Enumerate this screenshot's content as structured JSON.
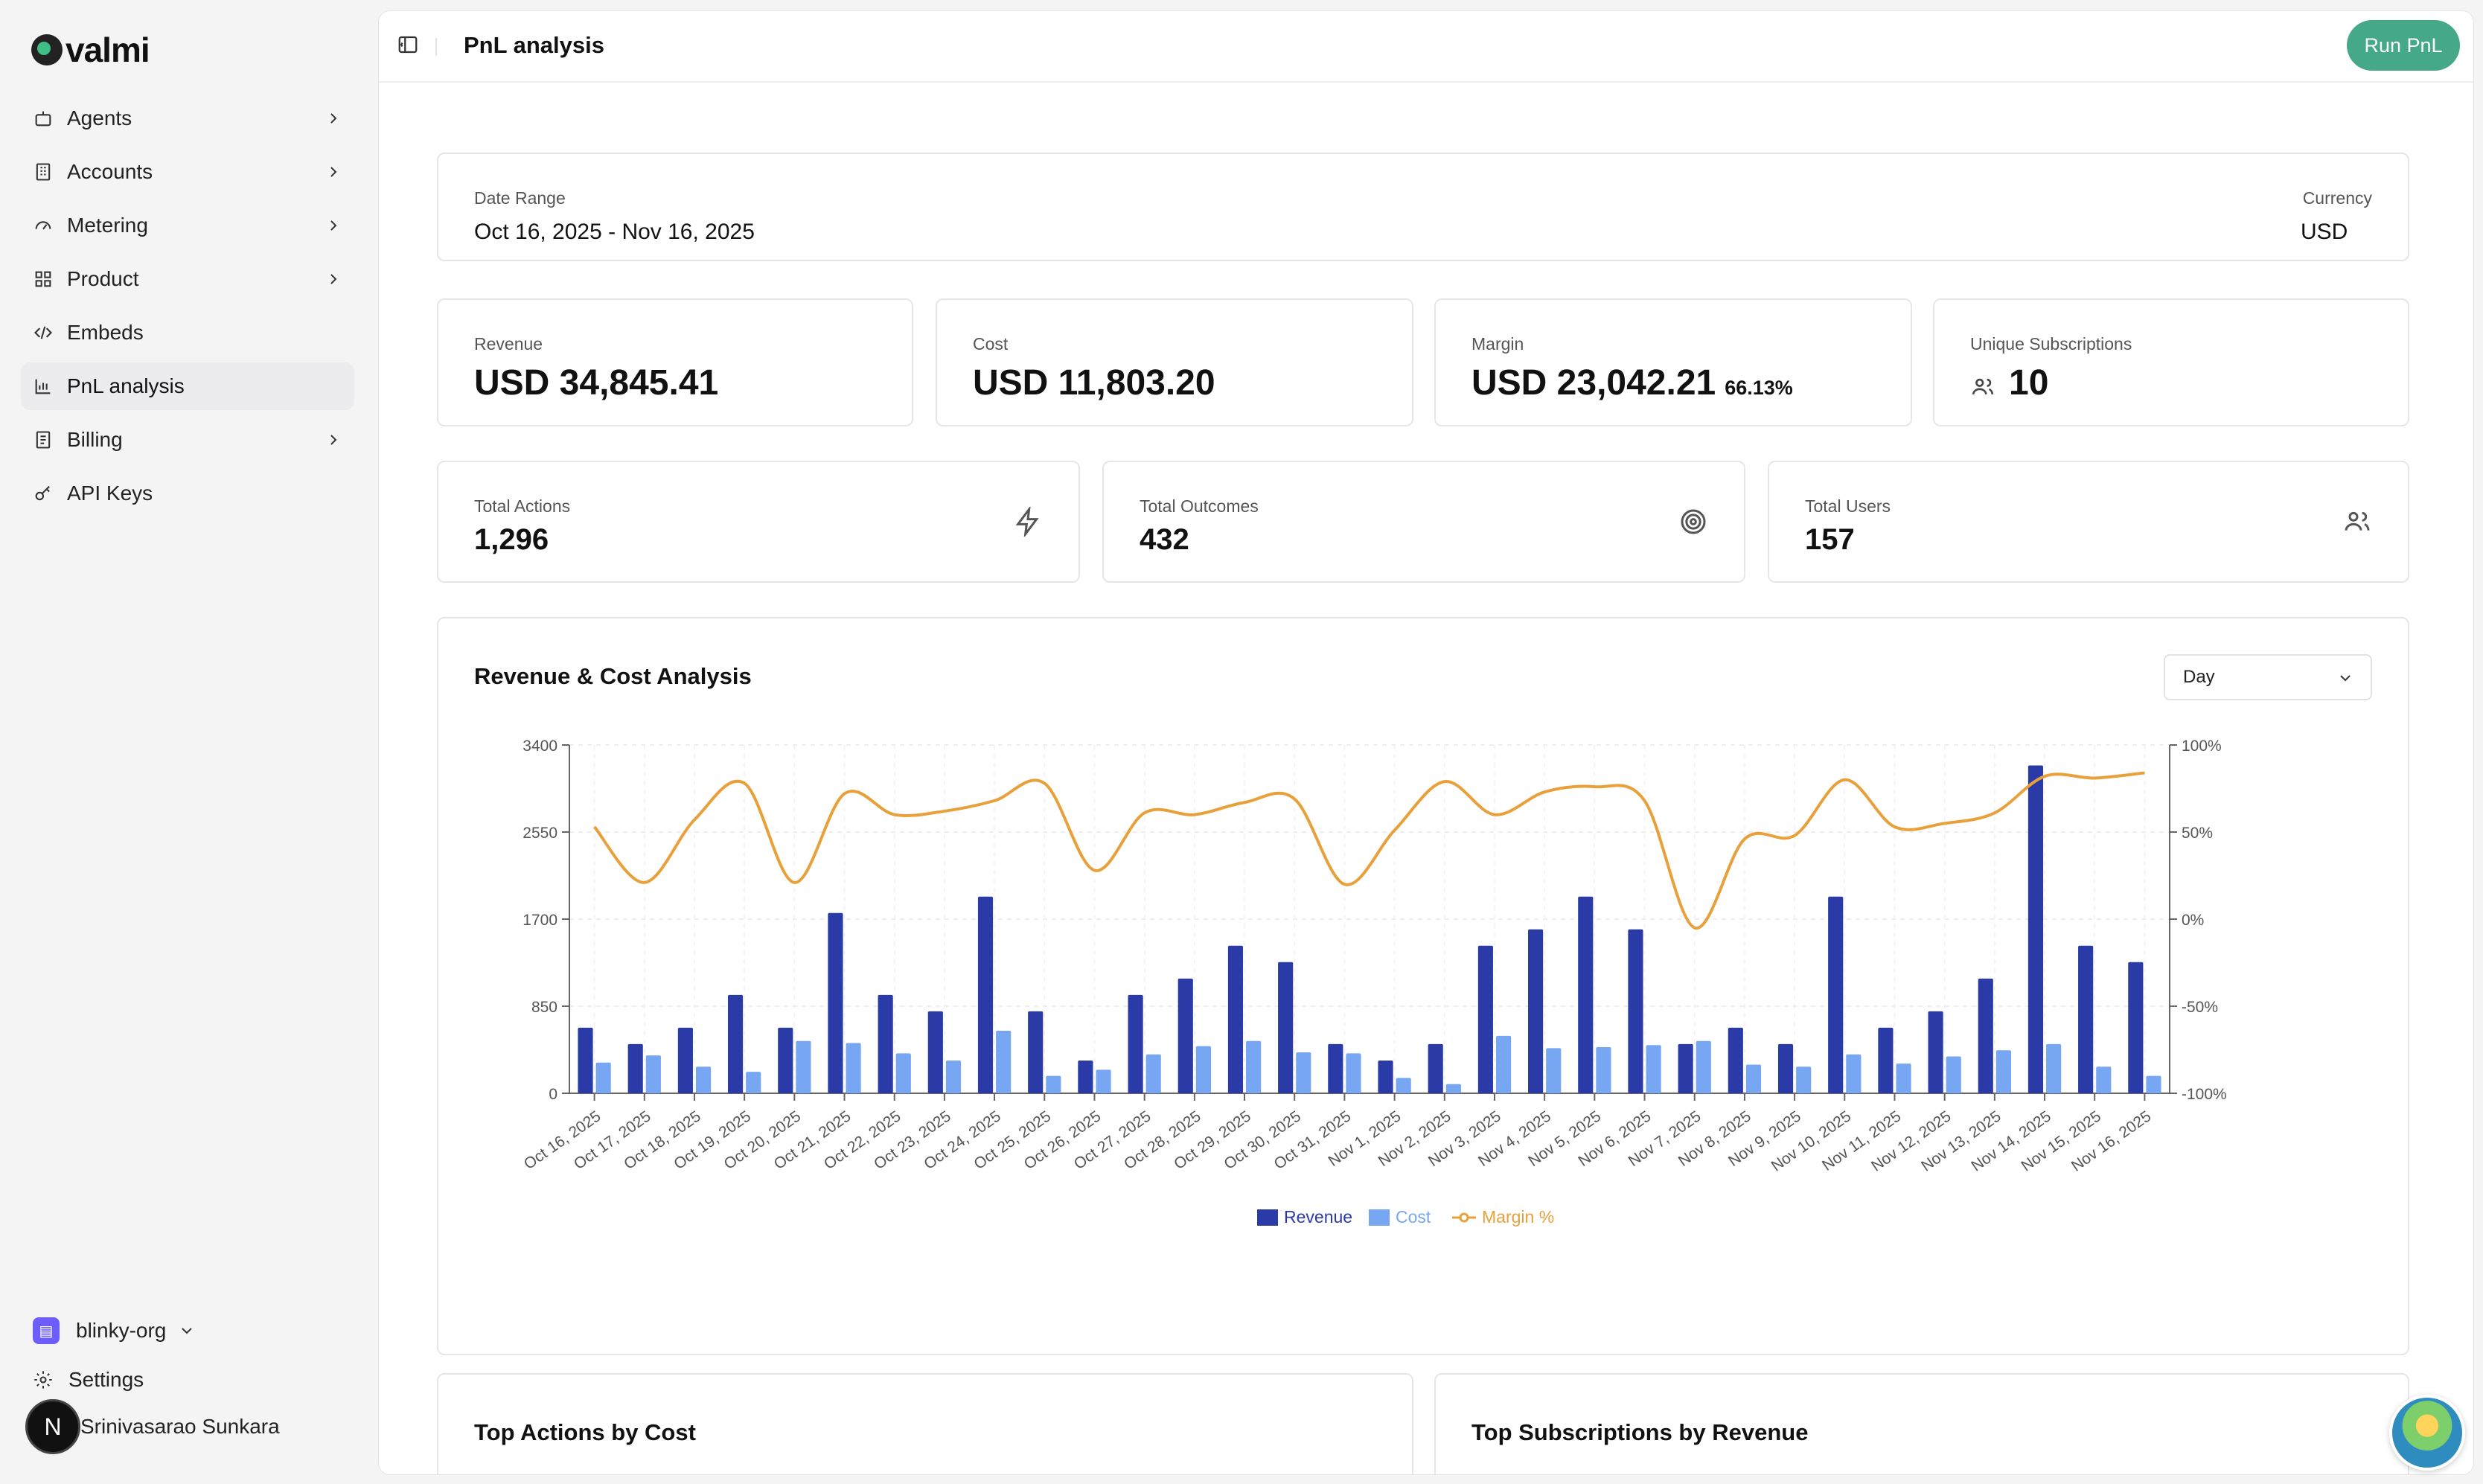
{
  "app": {
    "logo_text": "valmi"
  },
  "sidebar": {
    "items": [
      {
        "label": "Agents",
        "icon": "bot-icon",
        "has_chevron": true
      },
      {
        "label": "Accounts",
        "icon": "building-icon",
        "has_chevron": true
      },
      {
        "label": "Metering",
        "icon": "gauge-icon",
        "has_chevron": true
      },
      {
        "label": "Product",
        "icon": "grid-icon",
        "has_chevron": true
      },
      {
        "label": "Embeds",
        "icon": "code-icon",
        "has_chevron": false
      },
      {
        "label": "PnL analysis",
        "icon": "bar-chart-icon",
        "has_chevron": false,
        "active": true
      },
      {
        "label": "Billing",
        "icon": "receipt-icon",
        "has_chevron": true
      },
      {
        "label": "API Keys",
        "icon": "key-icon",
        "has_chevron": false
      }
    ],
    "org": {
      "name": "blinky-org",
      "badge_icon": "building-icon"
    },
    "settings_label": "Settings",
    "user": {
      "initial": "N",
      "name": "Srinivasarao Sunkara"
    }
  },
  "header": {
    "title": "PnL analysis",
    "run_button": "Run PnL"
  },
  "filters": {
    "date_range_label": "Date Range",
    "date_range_value": "Oct 16, 2025 - Nov 16, 2025",
    "currency_label": "Currency",
    "currency_value": "USD"
  },
  "kpis": {
    "revenue": {
      "label": "Revenue",
      "value": "USD 34,845.41"
    },
    "cost": {
      "label": "Cost",
      "value": "USD 11,803.20"
    },
    "margin": {
      "label": "Margin",
      "value": "USD 23,042.21",
      "percent": "66.13%"
    },
    "subscriptions": {
      "label": "Unique Subscriptions",
      "value": "10"
    }
  },
  "totals": {
    "actions": {
      "label": "Total Actions",
      "value": "1,296"
    },
    "outcomes": {
      "label": "Total Outcomes",
      "value": "432"
    },
    "users": {
      "label": "Total Users",
      "value": "157"
    }
  },
  "chart_section": {
    "title": "Revenue & Cost Analysis",
    "granularity": "Day"
  },
  "colors": {
    "revenue": "#2a3ba8",
    "cost": "#77a6f2",
    "margin": "#e8a13a",
    "accent": "#44a889"
  },
  "chart_data": {
    "type": "bar",
    "categories": [
      "Oct 16, 2025",
      "Oct 17, 2025",
      "Oct 18, 2025",
      "Oct 19, 2025",
      "Oct 20, 2025",
      "Oct 21, 2025",
      "Oct 22, 2025",
      "Oct 23, 2025",
      "Oct 24, 2025",
      "Oct 25, 2025",
      "Oct 26, 2025",
      "Oct 27, 2025",
      "Oct 28, 2025",
      "Oct 29, 2025",
      "Oct 30, 2025",
      "Oct 31, 2025",
      "Nov 1, 2025",
      "Nov 2, 2025",
      "Nov 3, 2025",
      "Nov 4, 2025",
      "Nov 5, 2025",
      "Nov 6, 2025",
      "Nov 7, 2025",
      "Nov 8, 2025",
      "Nov 9, 2025",
      "Nov 10, 2025",
      "Nov 11, 2025",
      "Nov 12, 2025",
      "Nov 13, 2025",
      "Nov 14, 2025",
      "Nov 15, 2025",
      "Nov 16, 2025"
    ],
    "series": [
      {
        "name": "Revenue",
        "type": "bar",
        "axis": "left",
        "values": [
          640,
          480,
          640,
          960,
          640,
          1760,
          960,
          800,
          1920,
          800,
          320,
          960,
          1120,
          1440,
          1280,
          480,
          320,
          480,
          1440,
          1600,
          1920,
          1600,
          480,
          640,
          480,
          1920,
          640,
          800,
          1120,
          3200,
          1440,
          1280
        ]
      },
      {
        "name": "Cost",
        "type": "bar",
        "axis": "left",
        "values": [
          300,
          370,
          260,
          210,
          510,
          490,
          390,
          320,
          610,
          170,
          230,
          380,
          460,
          510,
          400,
          390,
          150,
          90,
          560,
          440,
          450,
          470,
          510,
          280,
          260,
          380,
          290,
          360,
          420,
          480,
          260,
          170
        ]
      },
      {
        "name": "Margin %",
        "type": "line",
        "axis": "right",
        "values": [
          53,
          21,
          57,
          78,
          21,
          72,
          60,
          62,
          68,
          78,
          28,
          61,
          60,
          67,
          69,
          20,
          51,
          79,
          60,
          73,
          76,
          68,
          -5,
          46,
          48,
          80,
          53,
          55,
          61,
          82,
          81,
          84
        ]
      }
    ],
    "left_axis": {
      "ticks": [
        "0",
        "850",
        "1700",
        "2550",
        "3400"
      ],
      "ylim": [
        0,
        3400
      ]
    },
    "right_axis": {
      "ticks": [
        "-100%",
        "-50%",
        "0%",
        "50%",
        "100%"
      ],
      "ylim": [
        -100,
        100
      ]
    },
    "legend_position": "bottom-center",
    "grid": true
  },
  "sections": {
    "top_actions": "Top Actions by Cost",
    "top_subscriptions": "Top Subscriptions by Revenue"
  }
}
